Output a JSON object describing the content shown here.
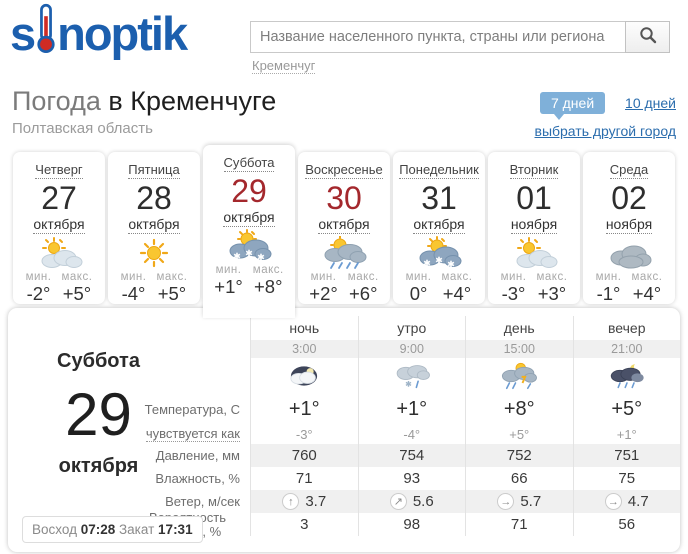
{
  "header": {
    "logo_pre": "s",
    "logo_post": "noptik",
    "search_placeholder": "Название населенного пункта, страны или региона",
    "recent_city": "Кременчуг"
  },
  "title": {
    "prefix": "Погода ",
    "city": "в Кременчуге",
    "region": "Полтавская область"
  },
  "range": {
    "days7": "7 дней",
    "days10": "10 дней",
    "choose_city": "выбрать другой город"
  },
  "labels": {
    "min": "мин.",
    "max": "макс."
  },
  "tabs": [
    {
      "day": "Четверг",
      "date": "27",
      "month": "октября",
      "icon": "sun-cloud",
      "min": "-2°",
      "max": "+5°"
    },
    {
      "day": "Пятница",
      "date": "28",
      "month": "октября",
      "icon": "sun",
      "min": "-4°",
      "max": "+5°"
    },
    {
      "day": "Суббота",
      "date": "29",
      "month": "октября",
      "icon": "sun-cloud-snow",
      "min": "+1°",
      "max": "+8°"
    },
    {
      "day": "Воскресенье",
      "date": "30",
      "month": "октября",
      "icon": "sun-cloud-rain",
      "min": "+2°",
      "max": "+6°"
    },
    {
      "day": "Понедельник",
      "date": "31",
      "month": "октября",
      "icon": "sun-cloud-snow",
      "min": "0°",
      "max": "+4°"
    },
    {
      "day": "Вторник",
      "date": "01",
      "month": "ноября",
      "icon": "sun-cloud",
      "min": "-3°",
      "max": "+3°"
    },
    {
      "day": "Среда",
      "date": "02",
      "month": "ноября",
      "icon": "cloud",
      "min": "-1°",
      "max": "+4°"
    }
  ],
  "detail": {
    "day": "Суббота",
    "date": "29",
    "month": "октября",
    "sunrise_label": "Восход",
    "sunrise_time": "07:28",
    "sunset_label": "Закат",
    "sunset_time": "17:31",
    "row_labels": {
      "temp": "Температура, C",
      "feels": "чувствуется как",
      "pressure": "Давление, мм",
      "humidity": "Влажность, %",
      "wind": "Ветер, м/сек",
      "precip": "Вероятность осадков, %"
    },
    "columns": [
      {
        "part": "ночь",
        "time": "3:00",
        "icon": "moon-cloud",
        "temp": "+1°",
        "feels": "-3°",
        "pressure": "760",
        "humidity": "71",
        "wind_dir": "↑",
        "wind": "3.7",
        "precip": "3"
      },
      {
        "part": "утро",
        "time": "9:00",
        "icon": "cloud-sleet",
        "temp": "+1°",
        "feels": "-4°",
        "pressure": "754",
        "humidity": "93",
        "wind_dir": "↗",
        "wind": "5.6",
        "precip": "98"
      },
      {
        "part": "день",
        "time": "15:00",
        "icon": "sun-cloud-storm",
        "temp": "+8°",
        "feels": "+5°",
        "pressure": "752",
        "humidity": "66",
        "wind_dir": "→",
        "wind": "5.7",
        "precip": "71"
      },
      {
        "part": "вечер",
        "time": "21:00",
        "icon": "moon-cloud-rain",
        "temp": "+5°",
        "feels": "+1°",
        "pressure": "751",
        "humidity": "75",
        "wind_dir": "→",
        "wind": "4.7",
        "precip": "56"
      }
    ]
  },
  "colors": {
    "brand_blue": "#1c5fae",
    "link_blue": "#2b6dad",
    "range_pill_bg": "#7fb0d9",
    "weekend_red": "#a4282d",
    "band_grey": "#f0f0f0"
  }
}
